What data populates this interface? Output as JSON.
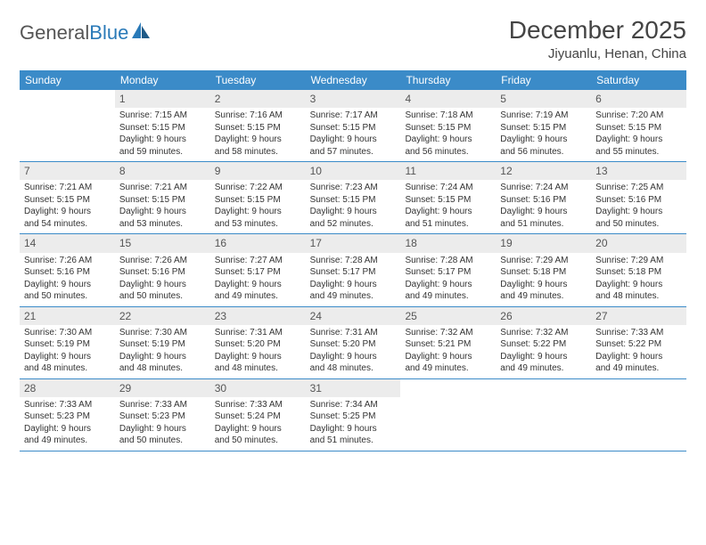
{
  "brand": {
    "part1": "General",
    "part2": "Blue"
  },
  "title": "December 2025",
  "location": "Jiyuanlu, Henan, China",
  "colors": {
    "header_bg": "#3b8bc8",
    "daynum_bg": "#ececec",
    "row_border": "#3b8bc8",
    "text": "#333333",
    "title": "#444444"
  },
  "weekdays": [
    "Sunday",
    "Monday",
    "Tuesday",
    "Wednesday",
    "Thursday",
    "Friday",
    "Saturday"
  ],
  "weeks": [
    [
      {
        "n": "",
        "lines": []
      },
      {
        "n": "1",
        "lines": [
          "Sunrise: 7:15 AM",
          "Sunset: 5:15 PM",
          "Daylight: 9 hours",
          "and 59 minutes."
        ]
      },
      {
        "n": "2",
        "lines": [
          "Sunrise: 7:16 AM",
          "Sunset: 5:15 PM",
          "Daylight: 9 hours",
          "and 58 minutes."
        ]
      },
      {
        "n": "3",
        "lines": [
          "Sunrise: 7:17 AM",
          "Sunset: 5:15 PM",
          "Daylight: 9 hours",
          "and 57 minutes."
        ]
      },
      {
        "n": "4",
        "lines": [
          "Sunrise: 7:18 AM",
          "Sunset: 5:15 PM",
          "Daylight: 9 hours",
          "and 56 minutes."
        ]
      },
      {
        "n": "5",
        "lines": [
          "Sunrise: 7:19 AM",
          "Sunset: 5:15 PM",
          "Daylight: 9 hours",
          "and 56 minutes."
        ]
      },
      {
        "n": "6",
        "lines": [
          "Sunrise: 7:20 AM",
          "Sunset: 5:15 PM",
          "Daylight: 9 hours",
          "and 55 minutes."
        ]
      }
    ],
    [
      {
        "n": "7",
        "lines": [
          "Sunrise: 7:21 AM",
          "Sunset: 5:15 PM",
          "Daylight: 9 hours",
          "and 54 minutes."
        ]
      },
      {
        "n": "8",
        "lines": [
          "Sunrise: 7:21 AM",
          "Sunset: 5:15 PM",
          "Daylight: 9 hours",
          "and 53 minutes."
        ]
      },
      {
        "n": "9",
        "lines": [
          "Sunrise: 7:22 AM",
          "Sunset: 5:15 PM",
          "Daylight: 9 hours",
          "and 53 minutes."
        ]
      },
      {
        "n": "10",
        "lines": [
          "Sunrise: 7:23 AM",
          "Sunset: 5:15 PM",
          "Daylight: 9 hours",
          "and 52 minutes."
        ]
      },
      {
        "n": "11",
        "lines": [
          "Sunrise: 7:24 AM",
          "Sunset: 5:15 PM",
          "Daylight: 9 hours",
          "and 51 minutes."
        ]
      },
      {
        "n": "12",
        "lines": [
          "Sunrise: 7:24 AM",
          "Sunset: 5:16 PM",
          "Daylight: 9 hours",
          "and 51 minutes."
        ]
      },
      {
        "n": "13",
        "lines": [
          "Sunrise: 7:25 AM",
          "Sunset: 5:16 PM",
          "Daylight: 9 hours",
          "and 50 minutes."
        ]
      }
    ],
    [
      {
        "n": "14",
        "lines": [
          "Sunrise: 7:26 AM",
          "Sunset: 5:16 PM",
          "Daylight: 9 hours",
          "and 50 minutes."
        ]
      },
      {
        "n": "15",
        "lines": [
          "Sunrise: 7:26 AM",
          "Sunset: 5:16 PM",
          "Daylight: 9 hours",
          "and 50 minutes."
        ]
      },
      {
        "n": "16",
        "lines": [
          "Sunrise: 7:27 AM",
          "Sunset: 5:17 PM",
          "Daylight: 9 hours",
          "and 49 minutes."
        ]
      },
      {
        "n": "17",
        "lines": [
          "Sunrise: 7:28 AM",
          "Sunset: 5:17 PM",
          "Daylight: 9 hours",
          "and 49 minutes."
        ]
      },
      {
        "n": "18",
        "lines": [
          "Sunrise: 7:28 AM",
          "Sunset: 5:17 PM",
          "Daylight: 9 hours",
          "and 49 minutes."
        ]
      },
      {
        "n": "19",
        "lines": [
          "Sunrise: 7:29 AM",
          "Sunset: 5:18 PM",
          "Daylight: 9 hours",
          "and 49 minutes."
        ]
      },
      {
        "n": "20",
        "lines": [
          "Sunrise: 7:29 AM",
          "Sunset: 5:18 PM",
          "Daylight: 9 hours",
          "and 48 minutes."
        ]
      }
    ],
    [
      {
        "n": "21",
        "lines": [
          "Sunrise: 7:30 AM",
          "Sunset: 5:19 PM",
          "Daylight: 9 hours",
          "and 48 minutes."
        ]
      },
      {
        "n": "22",
        "lines": [
          "Sunrise: 7:30 AM",
          "Sunset: 5:19 PM",
          "Daylight: 9 hours",
          "and 48 minutes."
        ]
      },
      {
        "n": "23",
        "lines": [
          "Sunrise: 7:31 AM",
          "Sunset: 5:20 PM",
          "Daylight: 9 hours",
          "and 48 minutes."
        ]
      },
      {
        "n": "24",
        "lines": [
          "Sunrise: 7:31 AM",
          "Sunset: 5:20 PM",
          "Daylight: 9 hours",
          "and 48 minutes."
        ]
      },
      {
        "n": "25",
        "lines": [
          "Sunrise: 7:32 AM",
          "Sunset: 5:21 PM",
          "Daylight: 9 hours",
          "and 49 minutes."
        ]
      },
      {
        "n": "26",
        "lines": [
          "Sunrise: 7:32 AM",
          "Sunset: 5:22 PM",
          "Daylight: 9 hours",
          "and 49 minutes."
        ]
      },
      {
        "n": "27",
        "lines": [
          "Sunrise: 7:33 AM",
          "Sunset: 5:22 PM",
          "Daylight: 9 hours",
          "and 49 minutes."
        ]
      }
    ],
    [
      {
        "n": "28",
        "lines": [
          "Sunrise: 7:33 AM",
          "Sunset: 5:23 PM",
          "Daylight: 9 hours",
          "and 49 minutes."
        ]
      },
      {
        "n": "29",
        "lines": [
          "Sunrise: 7:33 AM",
          "Sunset: 5:23 PM",
          "Daylight: 9 hours",
          "and 50 minutes."
        ]
      },
      {
        "n": "30",
        "lines": [
          "Sunrise: 7:33 AM",
          "Sunset: 5:24 PM",
          "Daylight: 9 hours",
          "and 50 minutes."
        ]
      },
      {
        "n": "31",
        "lines": [
          "Sunrise: 7:34 AM",
          "Sunset: 5:25 PM",
          "Daylight: 9 hours",
          "and 51 minutes."
        ]
      },
      {
        "n": "",
        "lines": []
      },
      {
        "n": "",
        "lines": []
      },
      {
        "n": "",
        "lines": []
      }
    ]
  ]
}
